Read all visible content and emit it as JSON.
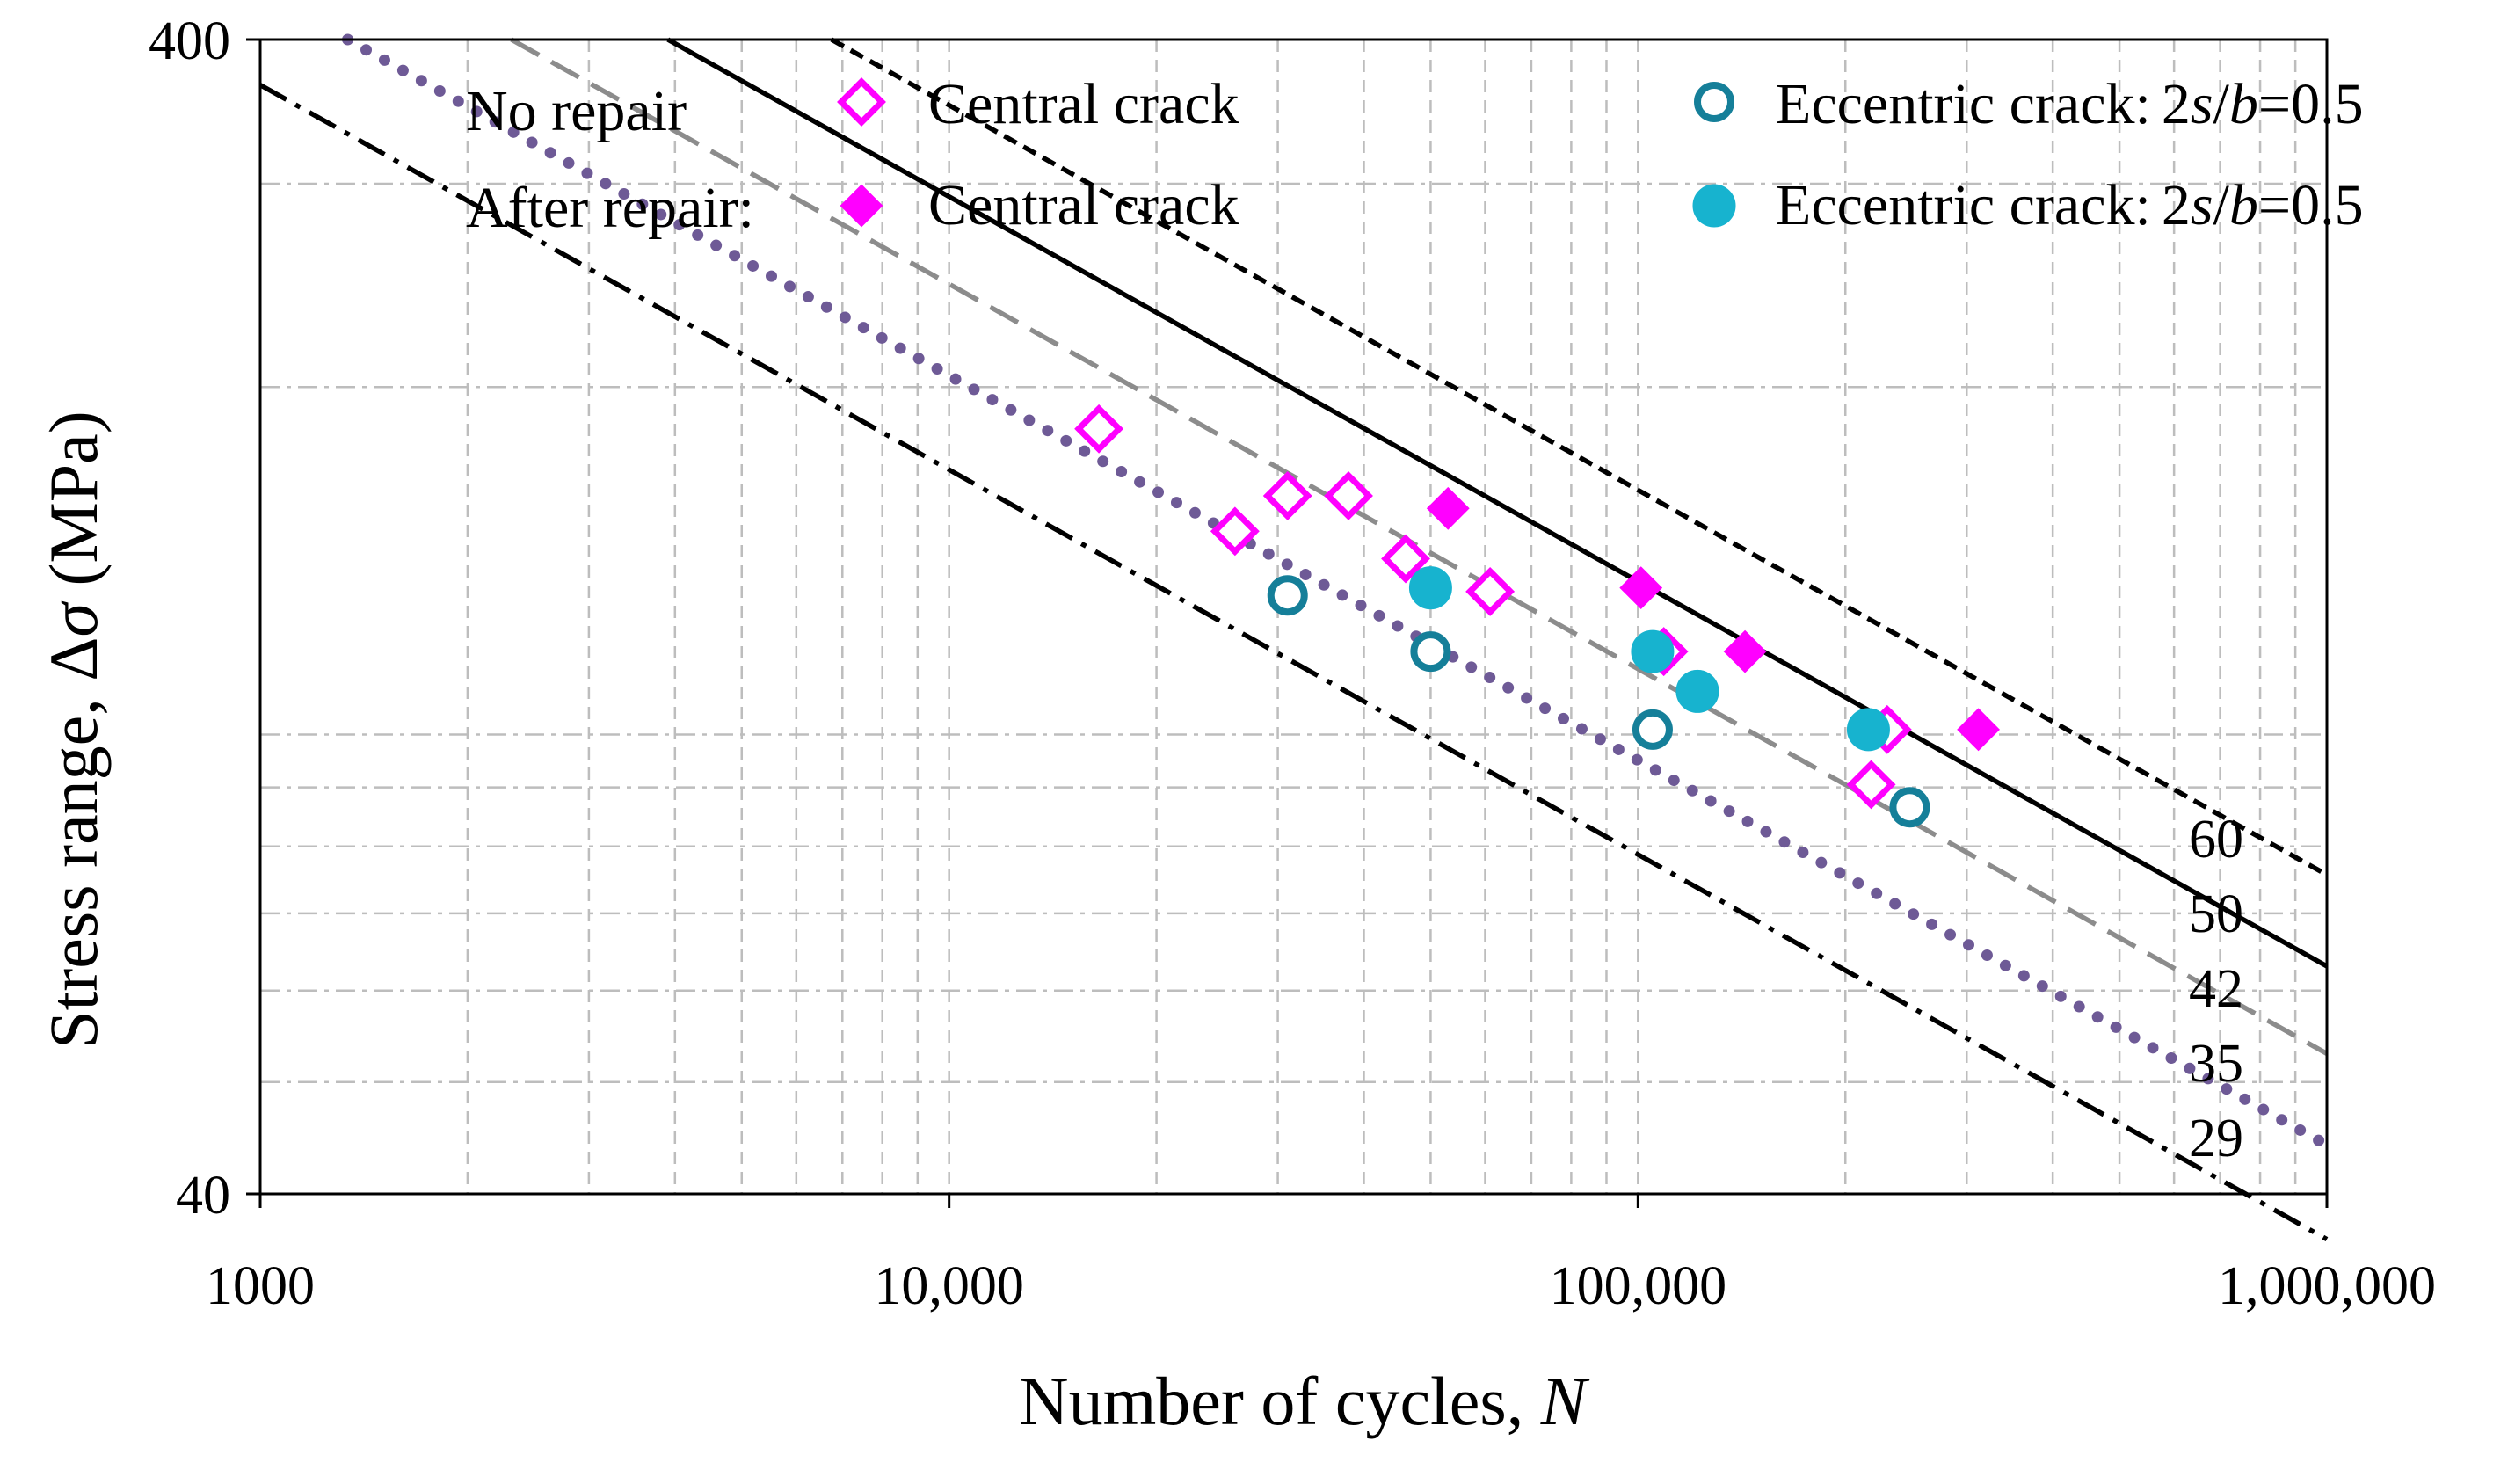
{
  "chart_data": {
    "type": "scatter",
    "xlabel_main": "Number of cycles, ",
    "xlabel_var": "N",
    "ylabel_main": "Stress range, ",
    "ylabel_delta": "Δ",
    "ylabel_sigma": "σ",
    "ylabel_unit": " (MPa)",
    "x_scale": "log",
    "y_scale": "log",
    "xlim": [
      1000,
      1000000
    ],
    "ylim": [
      40,
      400
    ],
    "x_ticks": [
      1000,
      10000,
      100000,
      1000000
    ],
    "x_tick_labels": [
      "1000",
      "10,000",
      "100,000",
      "1,000,000"
    ],
    "y_ticks": [
      40,
      400
    ],
    "y_tick_labels": [
      "40",
      "400"
    ],
    "grid": true,
    "legend": {
      "row1_group": "No repair",
      "row2_group": "After repair:",
      "central": "Central crack",
      "eccentric": "Eccentric crack:",
      "eccentric_param_num": "2",
      "eccentric_param_s": "s",
      "eccentric_param_slash": "/",
      "eccentric_param_b": "b",
      "eccentric_param_val": "=0.5"
    },
    "fat_curves": [
      {
        "label": "60",
        "FAT": 60,
        "style": "short-dash",
        "color": "#000000"
      },
      {
        "label": "50",
        "FAT": 50,
        "style": "solid",
        "color": "#000000"
      },
      {
        "label": "42",
        "FAT": 42,
        "style": "long-dash",
        "color": "#8c8c8c"
      },
      {
        "label": "35",
        "FAT": 35,
        "style": "round-dot",
        "color": "#6e5a96"
      },
      {
        "label": "29",
        "FAT": 29,
        "style": "dash-dot",
        "color": "#000000"
      }
    ],
    "series": [
      {
        "name": "No repair: Central crack",
        "marker": "diamond-open",
        "color": "#ff00ff",
        "points": [
          [
            16500,
            184
          ],
          [
            26000,
            150
          ],
          [
            31000,
            161
          ],
          [
            38000,
            161
          ],
          [
            46000,
            142
          ],
          [
            61000,
            133
          ],
          [
            109000,
            118
          ],
          [
            218000,
            90.5
          ],
          [
            230000,
            101
          ]
        ]
      },
      {
        "name": "After repair: Central crack",
        "marker": "diamond-filled",
        "color": "#ff00ff",
        "points": [
          [
            53000,
            157
          ],
          [
            101000,
            134
          ],
          [
            143000,
            118
          ],
          [
            312000,
            101
          ]
        ]
      },
      {
        "name": "No repair: Eccentric crack",
        "marker": "circle-open",
        "color": "#157f99",
        "points": [
          [
            31000,
            132
          ],
          [
            50000,
            118
          ],
          [
            105000,
            101
          ],
          [
            248000,
            86.5
          ]
        ]
      },
      {
        "name": "After repair: Eccentric crack",
        "marker": "circle-filled",
        "color": "#17b3cf",
        "points": [
          [
            50000,
            134
          ],
          [
            105000,
            118
          ],
          [
            122000,
            109
          ],
          [
            216000,
            101
          ]
        ]
      }
    ]
  }
}
